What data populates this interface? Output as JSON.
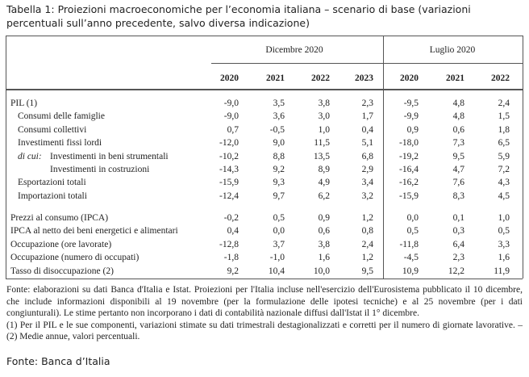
{
  "title": "Tabella 1: Proiezioni macroeconomiche per l’economia italiana – scenario di base (variazioni percentuali sull’anno precedente, salvo diversa indicazione)",
  "table": {
    "groups": [
      "Dicembre 2020",
      "Luglio 2020"
    ],
    "years": [
      "2020",
      "2021",
      "2022",
      "2023",
      "2020",
      "2021",
      "2022"
    ],
    "sections": [
      {
        "rows": [
          {
            "label": "PIL (1)",
            "values": [
              "-9,0",
              "3,5",
              "3,8",
              "2,3",
              "-9,5",
              "4,8",
              "2,4"
            ]
          },
          {
            "label": "Consumi delle famiglie",
            "values": [
              "-9,0",
              "3,6",
              "3,0",
              "1,7",
              "-9,9",
              "4,8",
              "1,5"
            ]
          },
          {
            "label": "Consumi collettivi",
            "values": [
              "0,7",
              "-0,5",
              "1,0",
              "0,4",
              "0,9",
              "0,6",
              "1,8"
            ]
          },
          {
            "label": "Investimenti fissi lordi",
            "values": [
              "-12,0",
              "9,0",
              "11,5",
              "5,1",
              "-18,0",
              "7,3",
              "6,5"
            ]
          },
          {
            "prefix": "di cui:",
            "label": "Investimenti in beni strumentali",
            "values": [
              "-10,2",
              "8,8",
              "13,5",
              "6,8",
              "-19,2",
              "9,5",
              "5,9"
            ]
          },
          {
            "label": "Investimenti in costruzioni",
            "values": [
              "-14,3",
              "9,2",
              "8,9",
              "2,9",
              "-16,4",
              "4,7",
              "7,2"
            ]
          },
          {
            "label": "Esportazioni totali",
            "values": [
              "-15,9",
              "9,3",
              "4,9",
              "3,4",
              "-16,2",
              "7,6",
              "4,3"
            ]
          },
          {
            "label": "Importazioni totali",
            "values": [
              "-12,4",
              "9,7",
              "6,2",
              "3,2",
              "-15,9",
              "8,3",
              "4,5"
            ]
          }
        ]
      },
      {
        "rows": [
          {
            "label": "Prezzi al consumo (IPCA)",
            "values": [
              "-0,2",
              "0,5",
              "0,9",
              "1,2",
              "0,0",
              "0,1",
              "1,0"
            ]
          },
          {
            "label": "IPCA al netto dei beni energetici e alimentari",
            "values": [
              "0,4",
              "0,0",
              "0,6",
              "0,8",
              "0,5",
              "0,3",
              "0,5"
            ]
          },
          {
            "label": "Occupazione (ore lavorate)",
            "values": [
              "-12,8",
              "3,7",
              "3,8",
              "2,4",
              "-11,8",
              "6,4",
              "3,3"
            ]
          },
          {
            "label": "Occupazione (numero di occupati)",
            "values": [
              "-1,8",
              "-1,0",
              "1,6",
              "1,2",
              "-4,5",
              "2,3",
              "1,6"
            ]
          },
          {
            "label": "Tasso di disoccupazione (2)",
            "values": [
              "9,2",
              "10,4",
              "10,0",
              "9,5",
              "10,9",
              "12,2",
              "11,9"
            ]
          }
        ]
      }
    ],
    "notes": [
      "Fonte: elaborazioni su dati Banca d'Italia e Istat. Proiezioni per l'Italia incluse nell'esercizio dell'Eurosistema pubblicato il 10 dicembre, che include informazioni disponibili al 19 novembre (per la formulazione delle ipotesi tecniche) e al 25 novembre (per i dati congiunturali). Le stime pertanto non incorporano i dati di contabilità nazionale diffusi dall'Istat il 1° dicembre.",
      "(1) Per il PIL e le sue componenti, variazioni stimate su dati trimestrali destagionalizzati e corretti per il numero di giornate lavorative. – (2) Medie annue, valori percentuali."
    ]
  },
  "source": "Fonte: Banca d’Italia"
}
